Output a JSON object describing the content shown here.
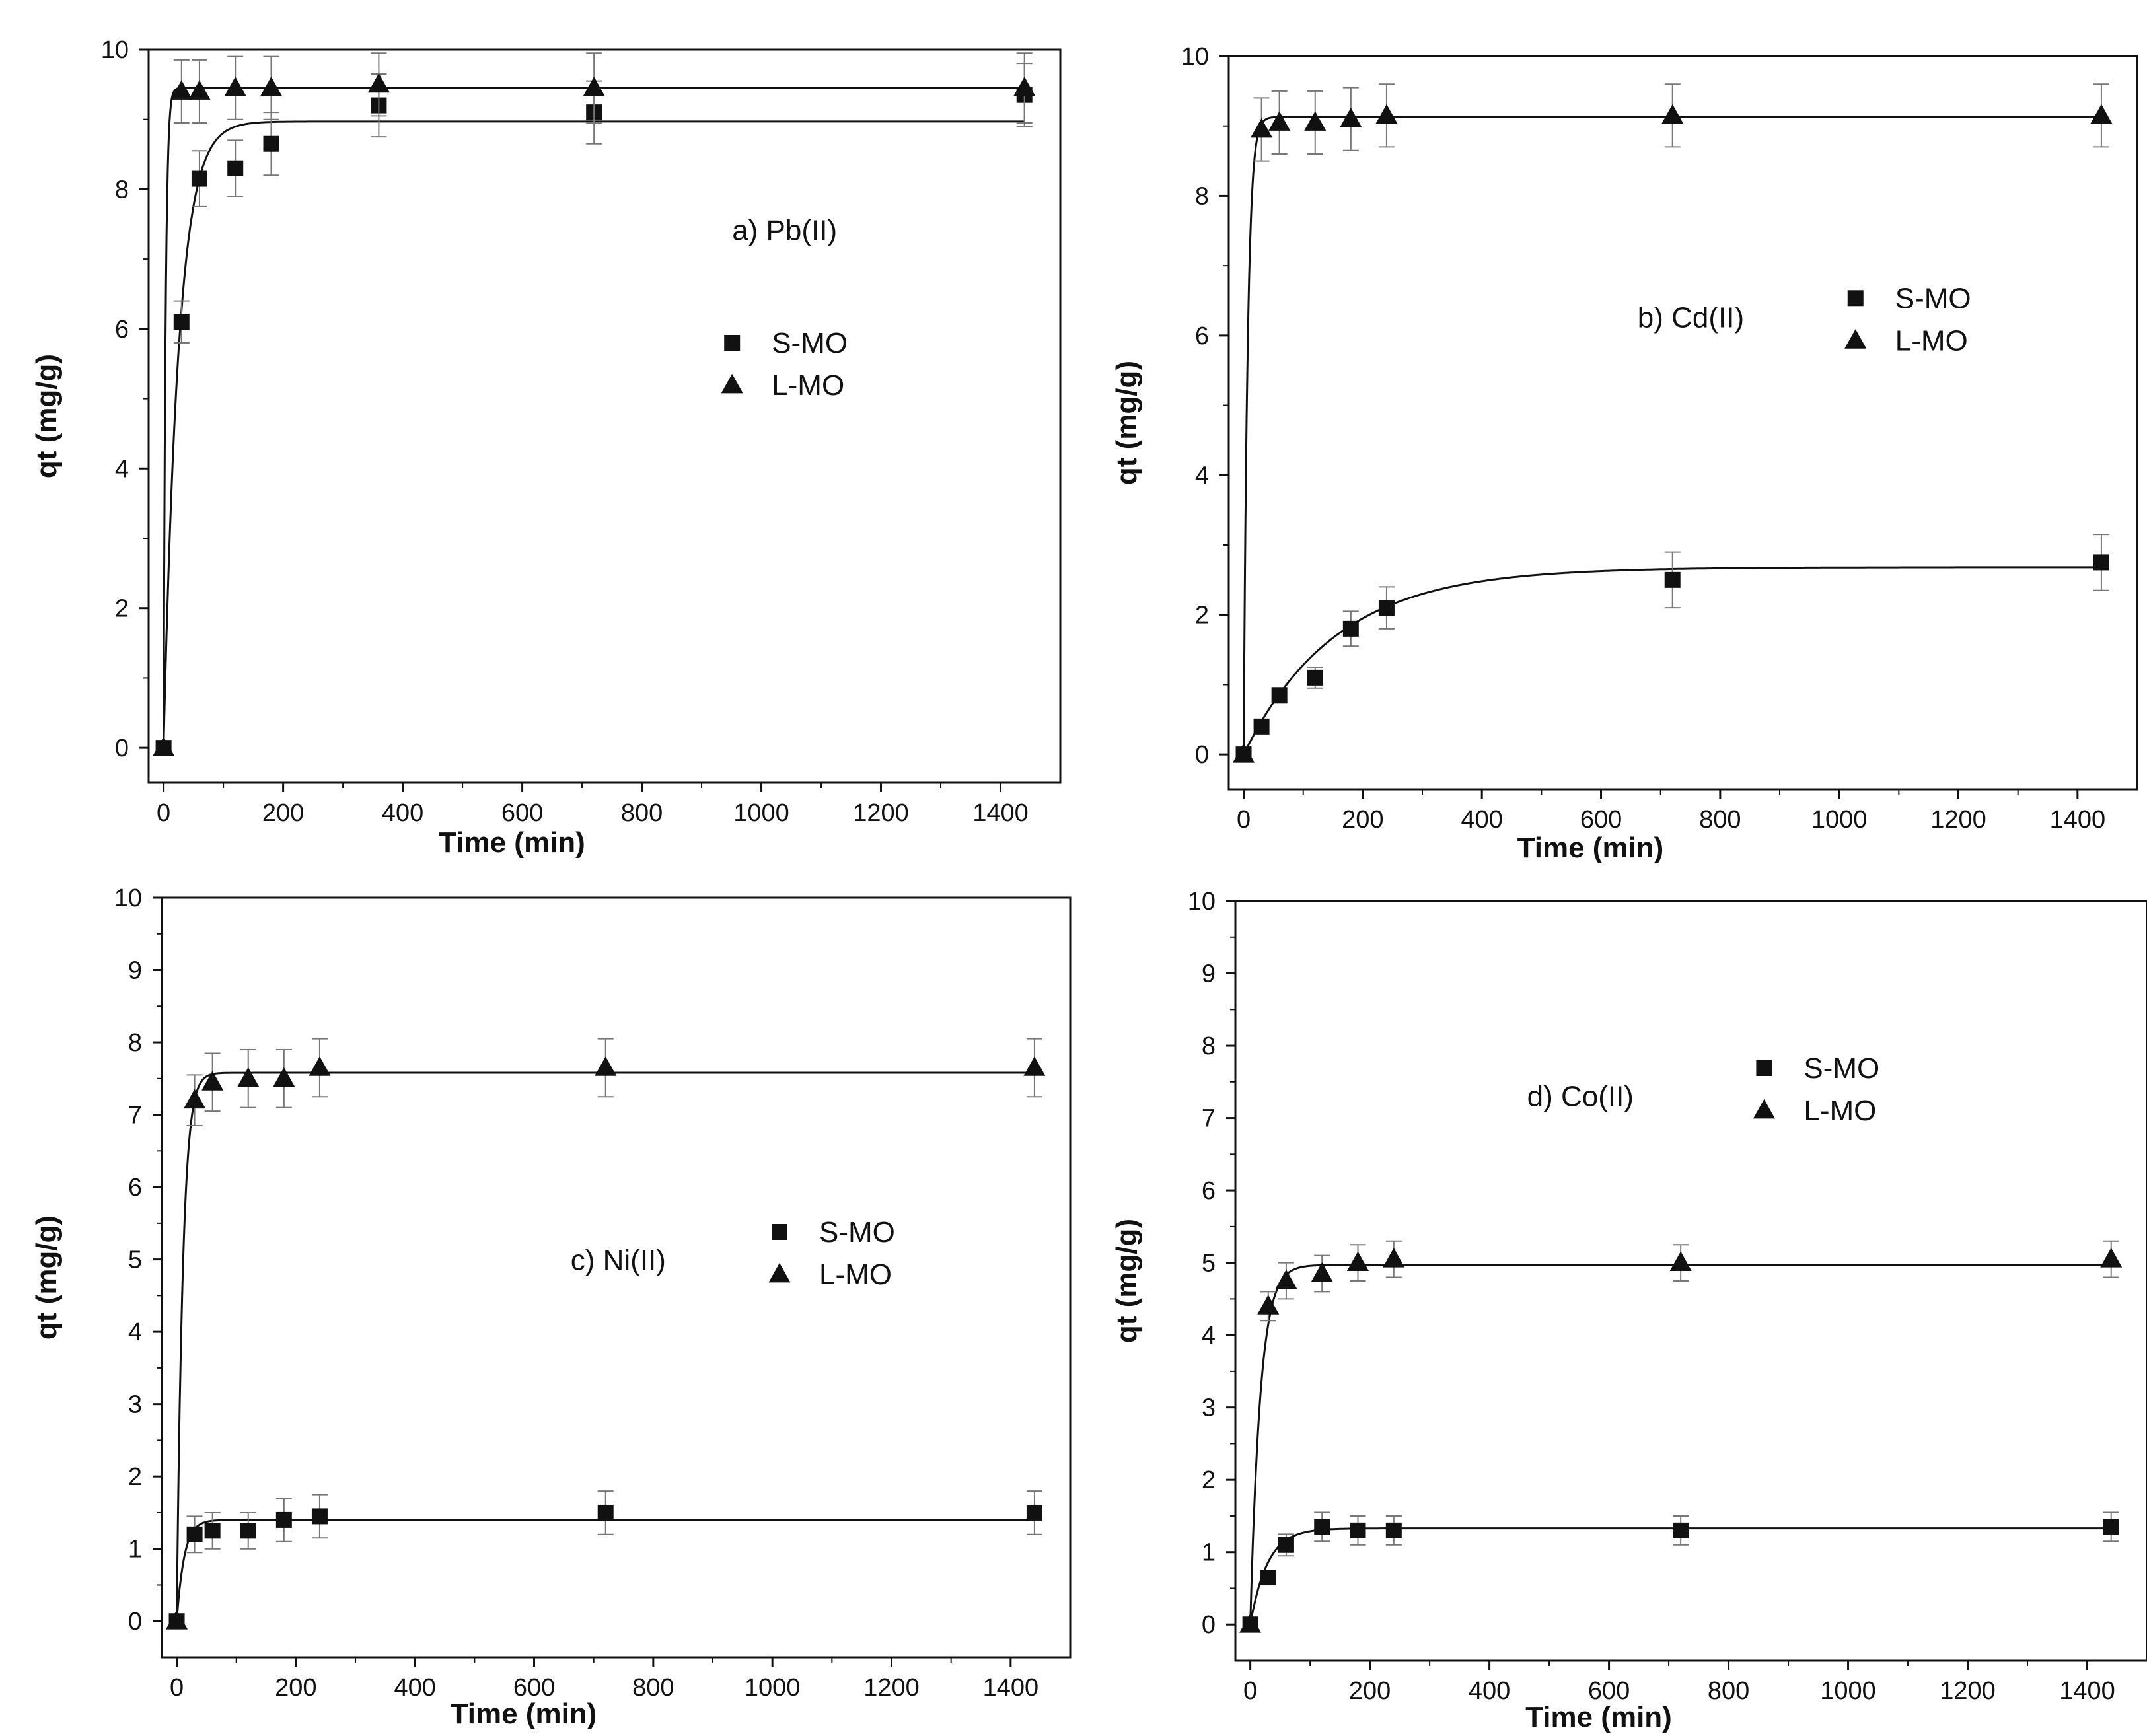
{
  "chart_data": [
    {
      "type": "scatter",
      "panel_label": "a) Pb(II)",
      "xlabel": "Time (min)",
      "ylabel": "qt (mg/g)",
      "xlim": [
        -25,
        1500
      ],
      "ylim": [
        -0.5,
        10
      ],
      "xticks": [
        0,
        200,
        400,
        600,
        800,
        1000,
        1200,
        1400
      ],
      "yticks": [
        0,
        2,
        4,
        6,
        8,
        10
      ],
      "legend_position": "right-middle",
      "series": [
        {
          "name": "S-MO",
          "marker": "square",
          "x": [
            0,
            30,
            60,
            120,
            180,
            360,
            720,
            1440
          ],
          "y": [
            0,
            6.1,
            8.15,
            8.3,
            8.65,
            9.2,
            9.1,
            9.35
          ],
          "error": [
            0,
            0.3,
            0.4,
            0.4,
            0.45,
            0.45,
            0.45,
            0.45
          ],
          "fit": {
            "qe": 8.97,
            "k": 0.04
          }
        },
        {
          "name": "L-MO",
          "marker": "triangle",
          "x": [
            0,
            30,
            60,
            120,
            180,
            360,
            720,
            1440
          ],
          "y": [
            0,
            9.4,
            9.4,
            9.45,
            9.45,
            9.5,
            9.45,
            9.45
          ],
          "error": [
            0,
            0.45,
            0.45,
            0.45,
            0.45,
            0.45,
            0.5,
            0.5
          ],
          "fit": {
            "qe": 9.45,
            "k": 0.3
          }
        }
      ]
    },
    {
      "type": "scatter",
      "panel_label": "b) Cd(II)",
      "xlabel": "Time (min)",
      "ylabel": "qt (mg/g)",
      "xlim": [
        -25,
        1500
      ],
      "ylim": [
        -0.5,
        10
      ],
      "xticks": [
        0,
        200,
        400,
        600,
        800,
        1000,
        1200,
        1400
      ],
      "yticks": [
        0,
        2,
        4,
        6,
        8,
        10
      ],
      "legend_position": "right-upper",
      "series": [
        {
          "name": "S-MO",
          "marker": "square",
          "x": [
            0,
            30,
            60,
            120,
            180,
            240,
            720,
            1440
          ],
          "y": [
            0,
            0.4,
            0.85,
            1.1,
            1.8,
            2.1,
            2.5,
            2.75
          ],
          "error": [
            0,
            0.1,
            0.1,
            0.15,
            0.25,
            0.3,
            0.4,
            0.4
          ],
          "fit": {
            "qe": 2.68,
            "k": 0.0065
          }
        },
        {
          "name": "L-MO",
          "marker": "triangle",
          "x": [
            0,
            30,
            60,
            120,
            180,
            240,
            720,
            1440
          ],
          "y": [
            0,
            8.95,
            9.05,
            9.05,
            9.1,
            9.15,
            9.15,
            9.15
          ],
          "error": [
            0,
            0.45,
            0.45,
            0.45,
            0.45,
            0.45,
            0.45,
            0.45
          ],
          "fit": {
            "qe": 9.13,
            "k": 0.15
          }
        }
      ]
    },
    {
      "type": "scatter",
      "panel_label": "c) Ni(II)",
      "xlabel": "Time (min)",
      "ylabel": "qt (mg/g)",
      "xlim": [
        -25,
        1500
      ],
      "ylim": [
        -0.5,
        10
      ],
      "xticks": [
        0,
        200,
        400,
        600,
        800,
        1000,
        1200,
        1400
      ],
      "yticks": [
        0,
        1,
        2,
        3,
        4,
        5,
        6,
        7,
        8,
        9,
        10
      ],
      "legend_position": "right-middle",
      "series": [
        {
          "name": "S-MO",
          "marker": "square",
          "x": [
            0,
            30,
            60,
            120,
            180,
            240,
            720,
            1440
          ],
          "y": [
            0,
            1.2,
            1.25,
            1.25,
            1.4,
            1.45,
            1.5,
            1.5
          ],
          "error": [
            0,
            0.25,
            0.25,
            0.25,
            0.3,
            0.3,
            0.3,
            0.3
          ],
          "fit": {
            "qe": 1.4,
            "k": 0.08
          }
        },
        {
          "name": "L-MO",
          "marker": "triangle",
          "x": [
            0,
            30,
            60,
            120,
            180,
            240,
            720,
            1440
          ],
          "y": [
            0,
            7.2,
            7.45,
            7.5,
            7.5,
            7.65,
            7.65,
            7.65
          ],
          "error": [
            0,
            0.35,
            0.4,
            0.4,
            0.4,
            0.4,
            0.4,
            0.4
          ],
          "fit": {
            "qe": 7.58,
            "k": 0.1
          }
        }
      ]
    },
    {
      "type": "scatter",
      "panel_label": "d) Co(II)",
      "xlabel": "Time (min)",
      "ylabel": "qt (mg/g)",
      "xlim": [
        -25,
        1500
      ],
      "ylim": [
        -0.5,
        10
      ],
      "xticks": [
        0,
        200,
        400,
        600,
        800,
        1000,
        1200,
        1400
      ],
      "yticks": [
        0,
        1,
        2,
        3,
        4,
        5,
        6,
        7,
        8,
        9,
        10
      ],
      "legend_position": "right-upper",
      "series": [
        {
          "name": "S-MO",
          "marker": "square",
          "x": [
            0,
            30,
            60,
            120,
            180,
            240,
            720,
            1440
          ],
          "y": [
            0,
            0.65,
            1.1,
            1.35,
            1.3,
            1.3,
            1.3,
            1.35
          ],
          "error": [
            0,
            0.1,
            0.15,
            0.2,
            0.2,
            0.2,
            0.2,
            0.2
          ],
          "fit": {
            "qe": 1.33,
            "k": 0.035
          }
        },
        {
          "name": "L-MO",
          "marker": "triangle",
          "x": [
            0,
            30,
            60,
            120,
            180,
            240,
            720,
            1440
          ],
          "y": [
            0,
            4.4,
            4.75,
            4.85,
            5.0,
            5.05,
            5.0,
            5.05
          ],
          "error": [
            0,
            0.2,
            0.25,
            0.25,
            0.25,
            0.25,
            0.25,
            0.25
          ],
          "fit": {
            "qe": 4.97,
            "k": 0.06
          }
        }
      ]
    }
  ]
}
